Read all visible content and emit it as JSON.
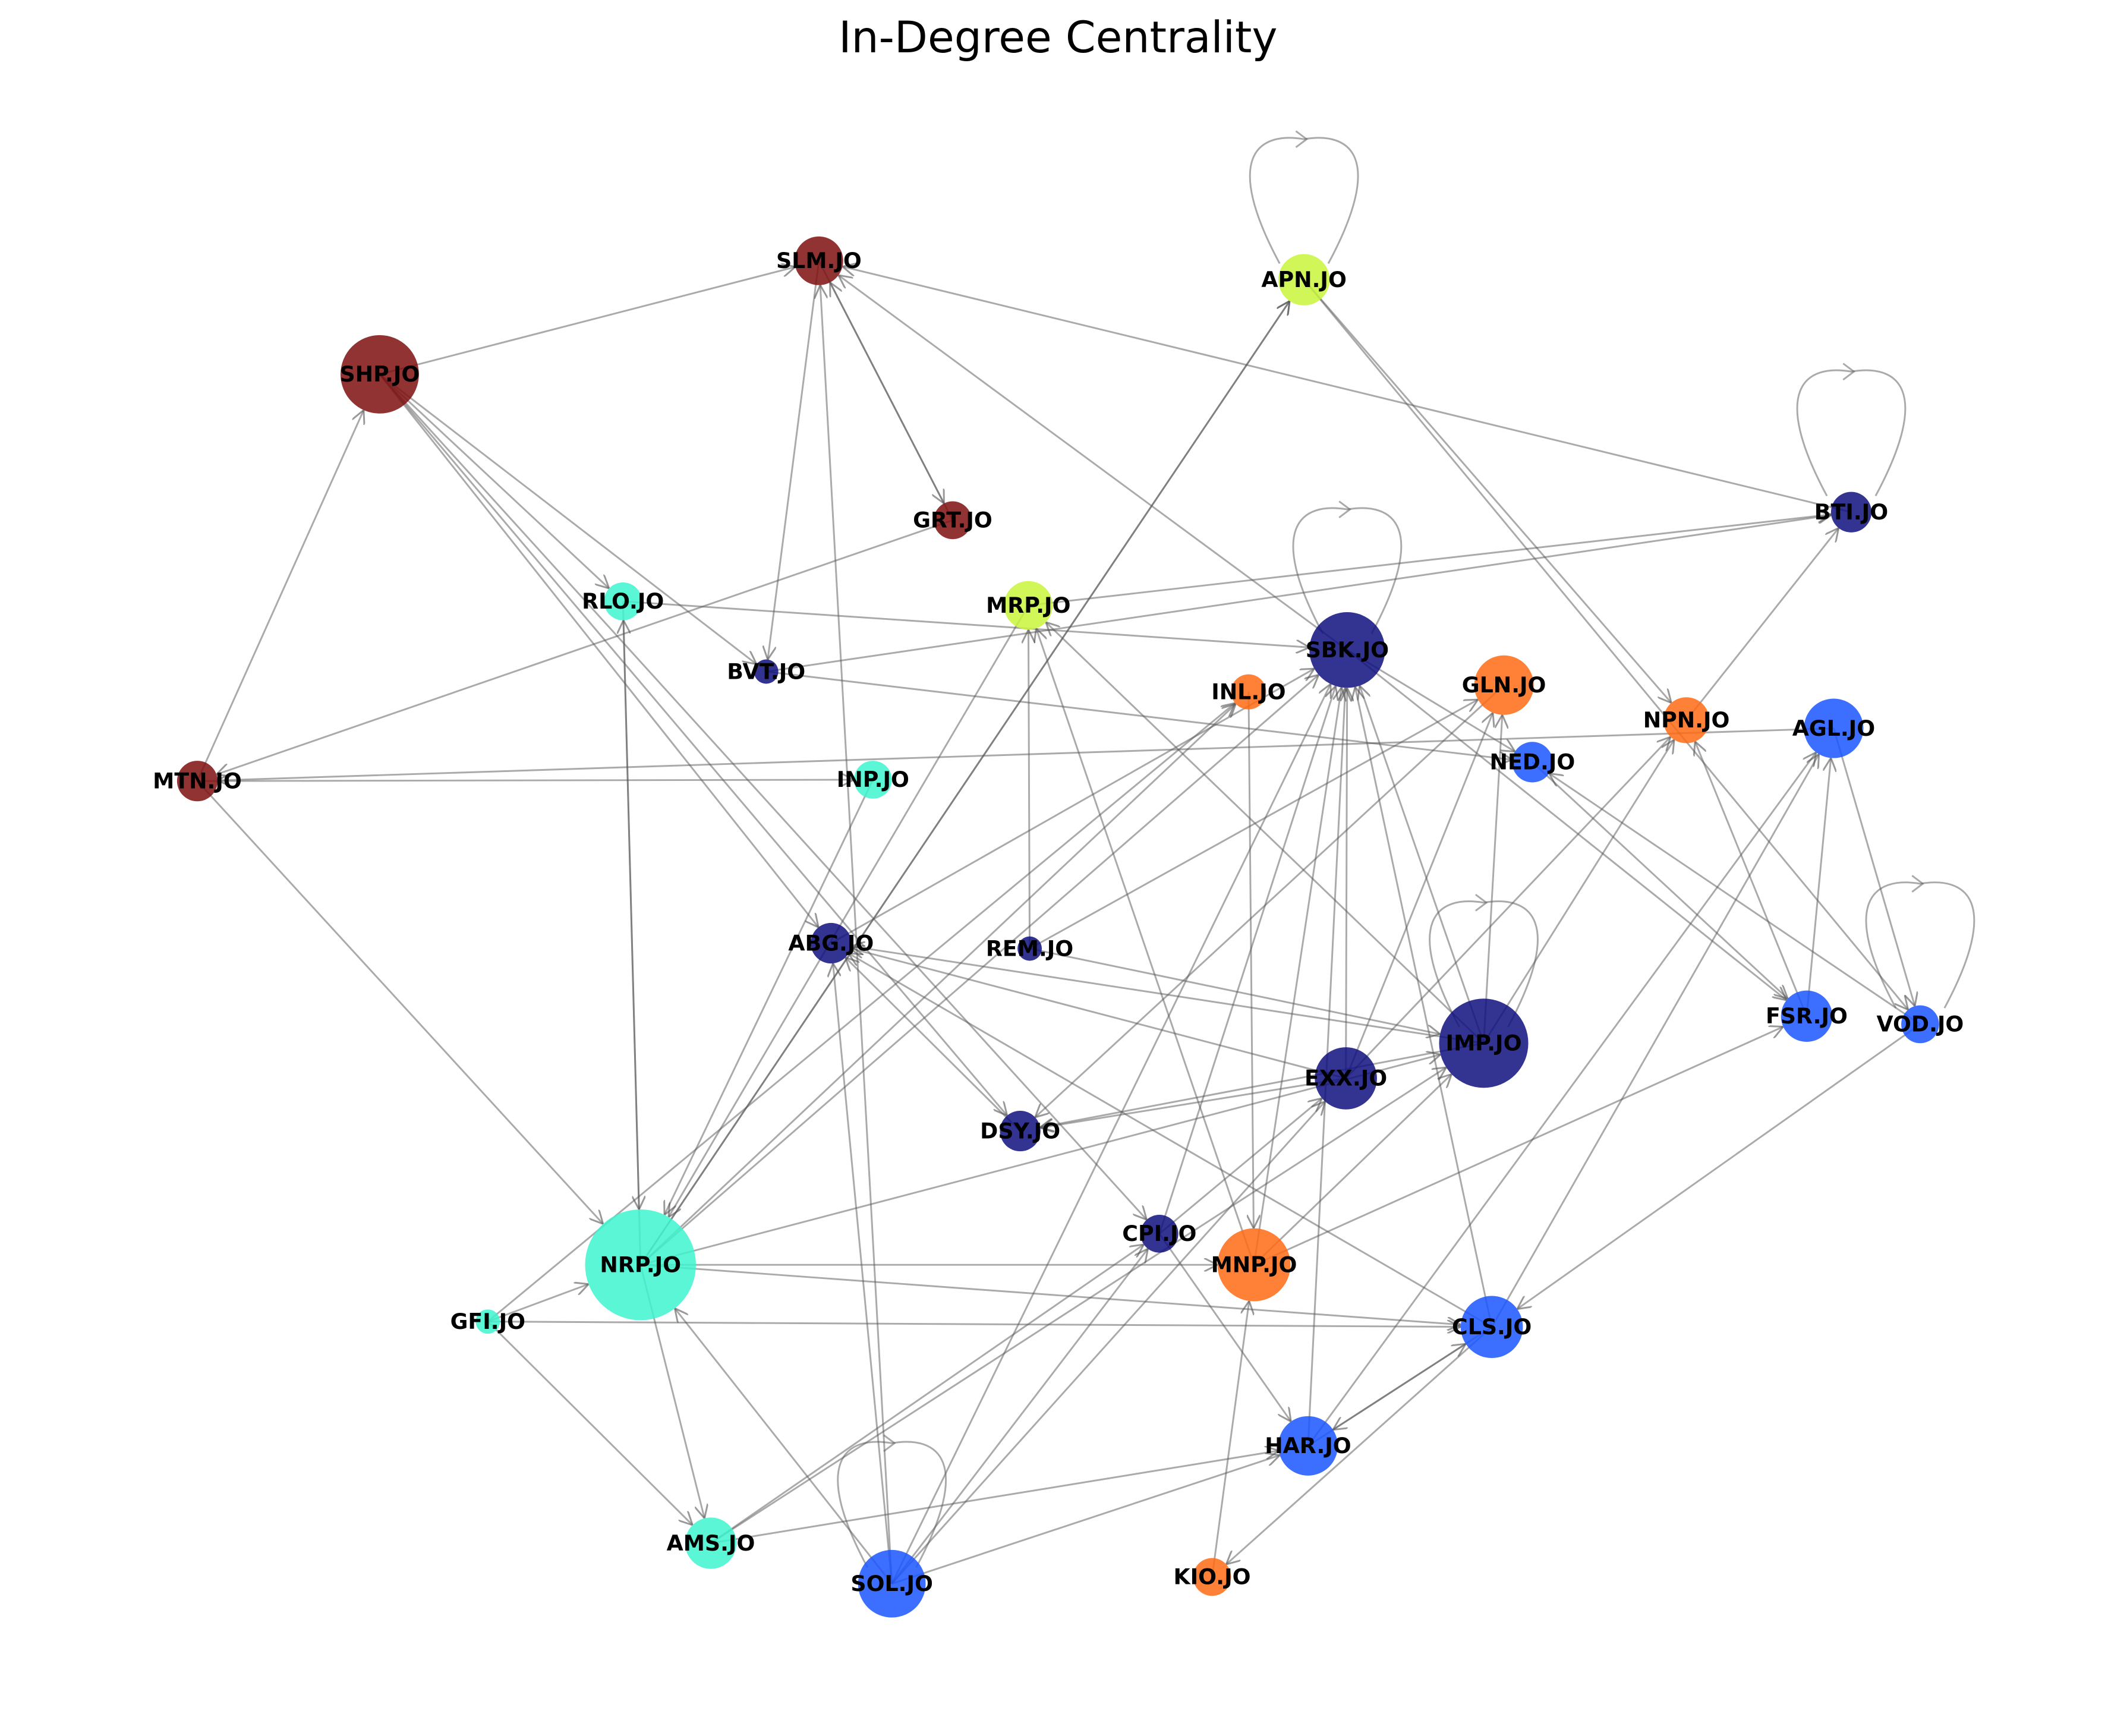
{
  "title": "In-Degree Centrality",
  "nodes": [
    {
      "label": "SLM.JO",
      "color": "#7f0f0f"
    },
    {
      "label": "APN.JO",
      "color": "#c8f53a"
    },
    {
      "label": "SHP.JO",
      "color": "#7f0f0f"
    },
    {
      "label": "GRT.JO",
      "color": "#7f0f0f"
    },
    {
      "label": "BTI.JO",
      "color": "#0f0f7f"
    },
    {
      "label": "RLO.JO",
      "color": "#3df5cf"
    },
    {
      "label": "MRP.JO",
      "color": "#c8f53a"
    },
    {
      "label": "SBK.JO",
      "color": "#0f0f7f"
    },
    {
      "label": "BVT.JO",
      "color": "#0f0f7f"
    },
    {
      "label": "INL.JO",
      "color": "#ff6a14"
    },
    {
      "label": "GLN.JO",
      "color": "#ff6a14"
    },
    {
      "label": "NPN.JO",
      "color": "#ff6a14"
    },
    {
      "label": "AGL.JO",
      "color": "#1a55ff"
    },
    {
      "label": "NED.JO",
      "color": "#1a55ff"
    },
    {
      "label": "MTN.JO",
      "color": "#7f0f0f"
    },
    {
      "label": "INP.JO",
      "color": "#3df5cf"
    },
    {
      "label": "ABG.JO",
      "color": "#0f0f7f"
    },
    {
      "label": "REM.JO",
      "color": "#0f0f7f"
    },
    {
      "label": "IMP.JO",
      "color": "#0f0f7f"
    },
    {
      "label": "FSR.JO",
      "color": "#1a55ff"
    },
    {
      "label": "VOD.JO",
      "color": "#1a55ff"
    },
    {
      "label": "EXX.JO",
      "color": "#0f0f7f"
    },
    {
      "label": "DSY.JO",
      "color": "#0f0f7f"
    },
    {
      "label": "CPI.JO",
      "color": "#0f0f7f"
    },
    {
      "label": "MNP.JO",
      "color": "#ff6a14"
    },
    {
      "label": "NRP.JO",
      "color": "#3df5cf"
    },
    {
      "label": "GFI.JO",
      "color": "#3df5cf"
    },
    {
      "label": "CLS.JO",
      "color": "#1a55ff"
    },
    {
      "label": "HAR.JO",
      "color": "#1a55ff"
    },
    {
      "label": "AMS.JO",
      "color": "#3df5cf"
    },
    {
      "label": "SOL.JO",
      "color": "#1a55ff"
    },
    {
      "label": "KIO.JO",
      "color": "#ff6a14"
    }
  ],
  "edges": [
    [
      2,
      0
    ],
    [
      0,
      3
    ],
    [
      3,
      0
    ],
    [
      0,
      8
    ],
    [
      30,
      0
    ],
    [
      7,
      0
    ],
    [
      4,
      0
    ],
    [
      14,
      2
    ],
    [
      2,
      5
    ],
    [
      2,
      8
    ],
    [
      2,
      16
    ],
    [
      2,
      22
    ],
    [
      2,
      23
    ],
    [
      25,
      1
    ],
    [
      25,
      1
    ],
    [
      1,
      11
    ],
    [
      1,
      20
    ],
    [
      1,
      1
    ],
    [
      4,
      4
    ],
    [
      7,
      7
    ],
    [
      18,
      18
    ],
    [
      20,
      20
    ],
    [
      30,
      30
    ],
    [
      14,
      15
    ],
    [
      14,
      25
    ],
    [
      3,
      14
    ],
    [
      12,
      14
    ],
    [
      8,
      4
    ],
    [
      6,
      4
    ],
    [
      5,
      7
    ],
    [
      5,
      25
    ],
    [
      25,
      5
    ],
    [
      6,
      25
    ],
    [
      17,
      6
    ],
    [
      18,
      6
    ],
    [
      24,
      6
    ],
    [
      17,
      10
    ],
    [
      17,
      18
    ],
    [
      15,
      25
    ],
    [
      16,
      7
    ],
    [
      25,
      9
    ],
    [
      25,
      7
    ],
    [
      25,
      18
    ],
    [
      25,
      24
    ],
    [
      25,
      27
    ],
    [
      25,
      29
    ],
    [
      26,
      25
    ],
    [
      26,
      27
    ],
    [
      26,
      29
    ],
    [
      26,
      9
    ],
    [
      30,
      25
    ],
    [
      30,
      16
    ],
    [
      30,
      7
    ],
    [
      30,
      21
    ],
    [
      30,
      28
    ],
    [
      21,
      16
    ],
    [
      18,
      16
    ],
    [
      22,
      16
    ],
    [
      27,
      16
    ],
    [
      21,
      22
    ],
    [
      18,
      22
    ],
    [
      21,
      7
    ],
    [
      18,
      7
    ],
    [
      23,
      7
    ],
    [
      24,
      7
    ],
    [
      27,
      7
    ],
    [
      28,
      7
    ],
    [
      7,
      13
    ],
    [
      7,
      19
    ],
    [
      21,
      10
    ],
    [
      18,
      10
    ],
    [
      21,
      11
    ],
    [
      18,
      11
    ],
    [
      19,
      11
    ],
    [
      11,
      4
    ],
    [
      19,
      12
    ],
    [
      12,
      20
    ],
    [
      28,
      12
    ],
    [
      27,
      12
    ],
    [
      20,
      27
    ],
    [
      20,
      13
    ],
    [
      13,
      19
    ],
    [
      27,
      31
    ],
    [
      27,
      28
    ],
    [
      28,
      27
    ],
    [
      31,
      24
    ],
    [
      24,
      18
    ],
    [
      29,
      18
    ],
    [
      29,
      28
    ],
    [
      29,
      23
    ],
    [
      30,
      23
    ],
    [
      23,
      21
    ],
    [
      23,
      28
    ],
    [
      10,
      22
    ],
    [
      24,
      19
    ],
    [
      8,
      13
    ],
    [
      9,
      24
    ]
  ]
}
